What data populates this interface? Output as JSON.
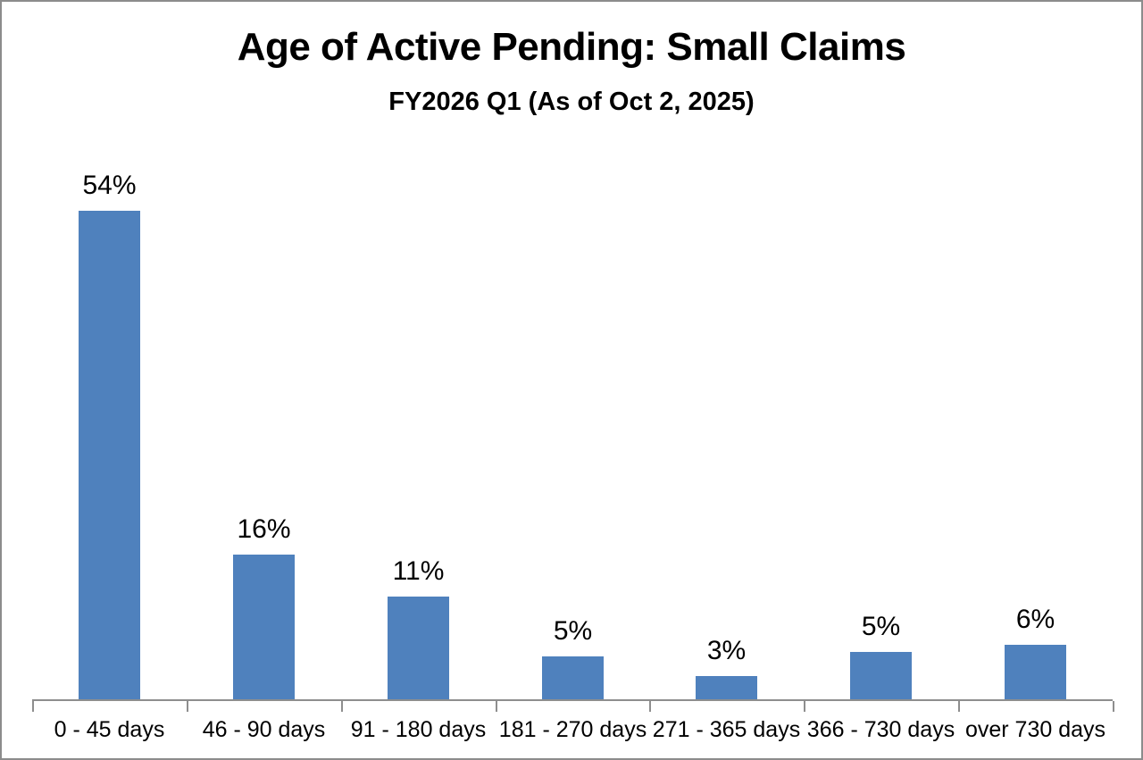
{
  "chart_data": {
    "type": "bar",
    "title": "Age of Active Pending: Small Claims",
    "subtitle": "FY2026 Q1 (As of Oct 2, 2025)",
    "categories": [
      "0 - 45 days",
      "46 - 90 days",
      "91 - 180 days",
      "181 - 270 days",
      "271 - 365 days",
      "366 - 730 days",
      "over 730 days"
    ],
    "values": [
      54,
      16,
      11,
      5,
      3,
      5,
      6
    ],
    "data_labels": [
      "54%",
      "16%",
      "11%",
      "5%",
      "3%",
      "5%",
      "6%"
    ],
    "bar_heights_pct_estimated": [
      54.1,
      16.0,
      11.4,
      4.7,
      2.6,
      5.2,
      6.0
    ],
    "unit": "%",
    "xlabel": "",
    "ylabel": "",
    "ylim": [
      0,
      57
    ],
    "grid": false,
    "legend": "none",
    "colors": {
      "bar": "#4f81bd",
      "axis": "#8e8e8e",
      "text": "#000000",
      "background": "#ffffff",
      "frame_border": "#8c8c8c"
    }
  }
}
